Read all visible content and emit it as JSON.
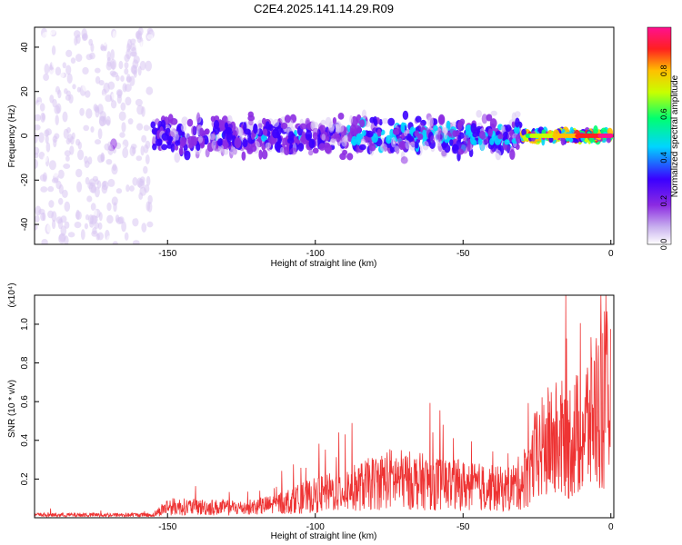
{
  "title": "C2E4.2025.141.14.29.R09",
  "chart_data": [
    {
      "type": "heatmap",
      "title": "C2E4.2025.141.14.29.R09",
      "xlabel": "Height of straight line (km)",
      "ylabel": "Frequency (Hz)",
      "xlim": [
        -195,
        1
      ],
      "ylim": [
        -49,
        49
      ],
      "x_ticks": [
        -150,
        -100,
        -50,
        0
      ],
      "y_ticks": [
        -40,
        -20,
        0,
        20,
        40
      ],
      "colorbar": {
        "label": "Normalized spectral amplitude",
        "range": [
          0.0,
          1.0
        ],
        "ticks": [
          0.0,
          0.2,
          0.4,
          0.6,
          0.8
        ],
        "tick_labels": [
          "0.0",
          "0.2",
          "0.4",
          "0.6",
          "0.8"
        ],
        "colormap": [
          "#ffffff",
          "#d9c6f2",
          "#8c2be2",
          "#3a00ff",
          "#00d5ff",
          "#00ff70",
          "#c8ff00",
          "#ffc000",
          "#ff2020",
          "#ff1090"
        ]
      },
      "description_bands": [
        {
          "x_range": [
            -195,
            -155
          ],
          "freq_half_width": 49,
          "amplitude": 0.15
        },
        {
          "x_range": [
            -155,
            -30
          ],
          "freq_half_width": 12,
          "amplitude": 0.35
        },
        {
          "x_range": [
            -30,
            0
          ],
          "freq_half_width": 3,
          "amplitude": 0.9
        }
      ]
    },
    {
      "type": "line",
      "xlabel": "Height of straight line (km)",
      "ylabel": "SNR (10 * v/v)",
      "y_multiplier_label": "(x10⁴)",
      "xlim": [
        -195,
        1
      ],
      "ylim": [
        0,
        1.15
      ],
      "x_ticks": [
        -150,
        -100,
        -50,
        0
      ],
      "y_ticks": [
        0.2,
        0.4,
        0.6,
        0.8,
        1.0
      ],
      "y_tick_labels": [
        "0.2",
        "0.4",
        "0.6",
        "0.8",
        "1.0"
      ],
      "color": "#ee3333",
      "envelope": {
        "x": [
          -195,
          -155,
          -150,
          -125,
          -115,
          -100,
          -85,
          -75,
          -65,
          -55,
          -45,
          -35,
          -30,
          -25,
          -20,
          -15,
          -10,
          -5,
          -2,
          0
        ],
        "y": [
          0.02,
          0.02,
          0.08,
          0.07,
          0.09,
          0.16,
          0.22,
          0.28,
          0.26,
          0.24,
          0.22,
          0.2,
          0.26,
          0.45,
          0.55,
          0.55,
          0.6,
          0.78,
          0.85,
          0.8
        ]
      }
    }
  ]
}
